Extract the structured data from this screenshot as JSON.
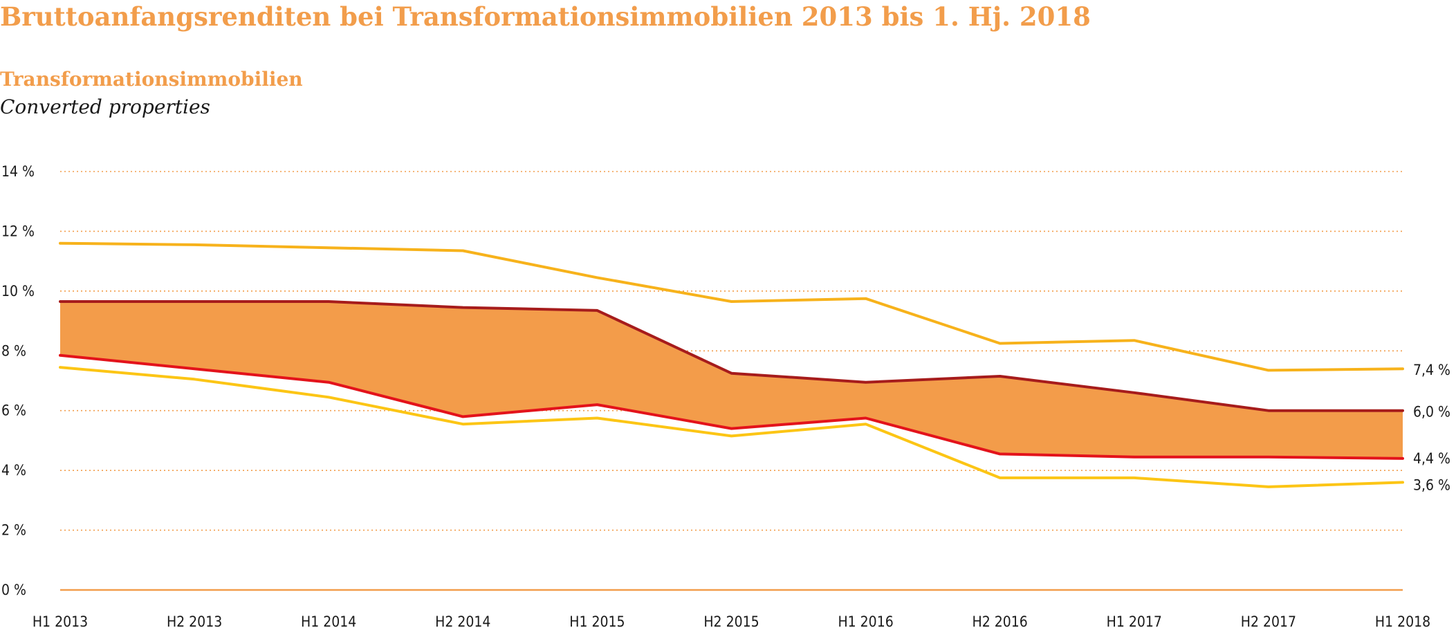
{
  "title": "Bruttoanfangsrenditen bei Transformationsimmobilien 2013 bis 1. Hj. 2018",
  "subtitle": "Transformationsimmobilien",
  "subtitle_en": "Converted properties",
  "colors": {
    "title": "#f29d4b",
    "band_fill": "#f39c4a",
    "outer_line": "#f7b21b",
    "lower_outer_line": "#fcc515",
    "band_top_line": "#a61c1c",
    "band_bottom_line": "#e3131b",
    "grid": "#f29d4b",
    "axis": "#f29d4b"
  },
  "chart_data": {
    "type": "area",
    "title": "Bruttoanfangsrenditen bei Transformationsimmobilien 2013 bis 1. Hj. 2018",
    "subtitle": "Transformationsimmobilien",
    "xlabel": "",
    "ylabel": "",
    "ylim": [
      0,
      14
    ],
    "yticks": [
      0,
      2,
      4,
      6,
      8,
      10,
      12,
      14
    ],
    "ytick_labels": [
      "0 %",
      "2 %",
      "4 %",
      "6 %",
      "8 %",
      "10 %",
      "12 %",
      "14 %"
    ],
    "grid": true,
    "categories": [
      "H1 2013",
      "H2 2013",
      "H1 2014",
      "H2 2014",
      "H1 2015",
      "H2 2015",
      "H1 2016",
      "H2 2016",
      "H1 2017",
      "H2 2017",
      "H1 2018"
    ],
    "series": [
      {
        "values": [
          11.6,
          11.55,
          11.45,
          11.35,
          10.45,
          9.65,
          9.75,
          8.25,
          8.35,
          7.35,
          7.4
        ],
        "end_label": "7,4 %"
      },
      {
        "values": [
          9.65,
          9.65,
          9.65,
          9.45,
          9.35,
          7.25,
          6.95,
          7.15,
          6.6,
          6.0,
          6.0
        ],
        "end_label": "6,0 %"
      },
      {
        "values": [
          7.85,
          7.4,
          6.95,
          5.8,
          6.2,
          5.4,
          5.75,
          4.55,
          4.45,
          4.45,
          4.4
        ],
        "end_label": "4,4 %"
      },
      {
        "values": [
          7.45,
          7.05,
          6.45,
          5.55,
          5.75,
          5.15,
          5.55,
          3.75,
          3.75,
          3.45,
          3.6
        ],
        "end_label": "3,6 %"
      }
    ]
  }
}
